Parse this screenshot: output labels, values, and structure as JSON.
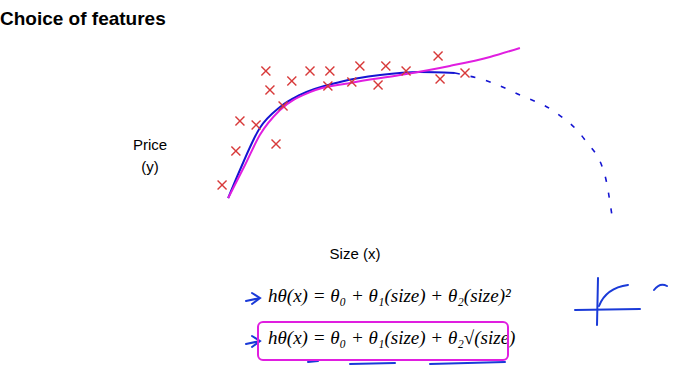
{
  "chart_data": {
    "type": "scatter",
    "title": "Choice of features",
    "x_label": "Size (x)",
    "y_label": "Price (y)",
    "xlim": [
      0,
      130
    ],
    "ylim": [
      0,
      100
    ],
    "xticks": [],
    "yticks": [
      16,
      29,
      43,
      57,
      70,
      84,
      97
    ],
    "tick_labels": false,
    "grid": false,
    "series": [
      {
        "type": "scatter",
        "marker": "x",
        "color": "#d83a3a",
        "x": [
          11.6,
          15.7,
          16.9,
          21.7,
          24.6,
          25.8,
          27.6,
          29.7,
          32.3,
          37.7,
          43.6,
          43.0,
          50.1,
          52.5,
          60.2,
          57.9,
          66.2,
          75.7,
          76.3,
          83.7
        ],
        "values": [
          27.7,
          45.5,
          61.3,
          59.2,
          87.4,
          77.5,
          49.2,
          69.1,
          82.2,
          87.4,
          87.4,
          79.6,
          81.7,
          90.1,
          90.1,
          80.1,
          87.4,
          95.3,
          83.2,
          86.4
        ]
      },
      {
        "type": "line",
        "color": "#1414d2",
        "x": [
          13.4,
          16.9,
          22.8,
          28.8,
          34.7,
          46.6,
          58.5,
          70.3,
          80.7
        ],
        "values": [
          20.9,
          35.6,
          57.6,
          68.6,
          74.9,
          81.7,
          85.3,
          86.9,
          86.4
        ]
      },
      {
        "type": "line",
        "line_style": "dashed",
        "color": "#1414d2",
        "x": [
          80.7,
          91.1,
          100.0,
          110.4,
          119.3,
          125.2,
          127.3
        ],
        "values": [
          86.4,
          81.7,
          74.9,
          66.0,
          51.3,
          33.0,
          12.0
        ]
      },
      {
        "type": "line",
        "color": "#e01ee0",
        "x": [
          13.4,
          18.4,
          22.8,
          28.8,
          37.7,
          49.6,
          64.4,
          79.2,
          91.1,
          100.0
        ],
        "values": [
          20.9,
          38.2,
          53.9,
          67.0,
          76.4,
          81.2,
          85.3,
          90.1,
          94.8,
          99.5
        ]
      }
    ],
    "annotations": [
      "hθ(x) = θ₀ + θ₁(size) + θ₂(size)²",
      "hθ(x) = θ₀ + θ₁(size) + θ₂√(size)"
    ]
  }
}
